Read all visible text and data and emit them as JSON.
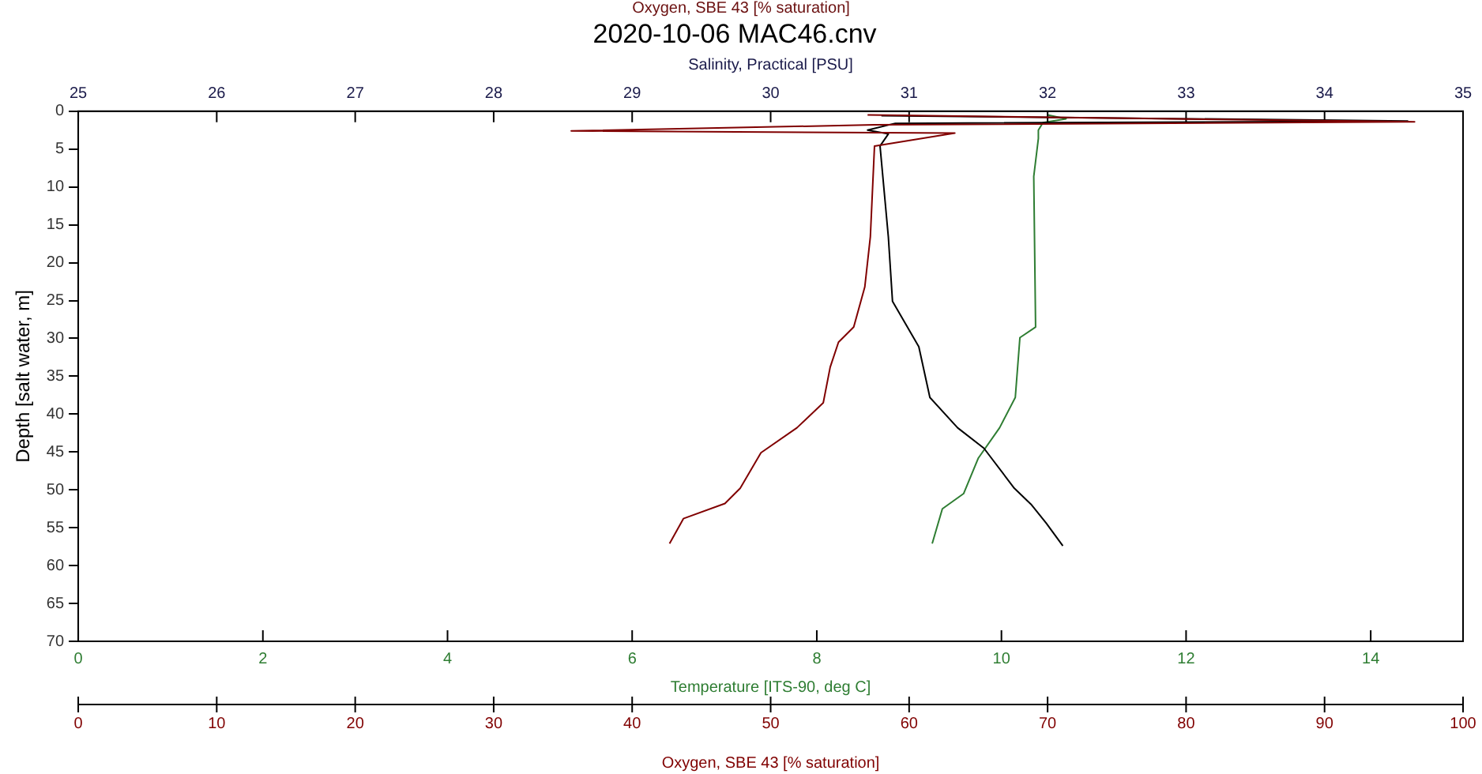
{
  "chart_data": [
    {
      "type": "line",
      "title": "2020-10-06 MAC46.cnv",
      "annotations": [
        "Oxygen, SBE 43 [% saturation]"
      ],
      "xlabel": "Temperature [ITS-90, deg C]",
      "xlim": [
        0,
        15
      ],
      "xticks": [
        0,
        2,
        4,
        6,
        8,
        10,
        12,
        14
      ],
      "x2label": "Salinity, Practical [PSU]",
      "x2lim": [
        25,
        35
      ],
      "x2ticks": [
        25,
        26,
        27,
        28,
        29,
        30,
        31,
        32,
        33,
        34,
        35
      ],
      "ylabel": "Depth [salt water, m]",
      "ylim": [
        70,
        0
      ],
      "yticks": [
        0,
        5,
        10,
        15,
        20,
        25,
        30,
        35,
        40,
        45,
        50,
        55,
        60,
        65,
        70
      ],
      "marker": "none",
      "line_style": "solid",
      "series": [
        {
          "axis": "x2",
          "color": "#000000",
          "x": [
            30.8,
            34.1,
            34.6,
            30.9,
            30.7,
            30.85,
            30.79,
            30.85,
            30.88,
            31.07,
            31.15,
            31.35,
            31.54,
            31.76,
            31.88,
            31.99,
            32.11
          ],
          "values": [
            0.6,
            1.2,
            1.3,
            1.6,
            2.5,
            3.0,
            4.6,
            16.6,
            25.1,
            31.1,
            37.8,
            41.8,
            44.5,
            49.8,
            51.9,
            54.4,
            57.4
          ]
        },
        {
          "color": "#2e7d32",
          "x": [
            10.5,
            10.7,
            10.45,
            10.4,
            10.4,
            10.35,
            10.37,
            10.2,
            10.15,
            9.98,
            9.75,
            9.59,
            9.36,
            9.25
          ],
          "values": [
            0.5,
            1.0,
            1.5,
            2.5,
            3.6,
            8.6,
            28.5,
            29.9,
            37.8,
            41.8,
            45.8,
            50.5,
            52.5,
            57.1
          ]
        }
      ]
    },
    {
      "type": "line",
      "xlabel": "Oxygen, SBE 43 [% saturation]",
      "xlim": [
        0,
        100
      ],
      "xticks": [
        0,
        10,
        20,
        30,
        40,
        50,
        60,
        70,
        80,
        90,
        100
      ],
      "ylim": [
        70,
        0
      ],
      "yticks": [
        0,
        5,
        10,
        15,
        20,
        25,
        30,
        35,
        40,
        45,
        50,
        55,
        60,
        65,
        70
      ],
      "tick_labels": "x",
      "marker": "none",
      "line_style": "solid",
      "series": [
        {
          "color": "#800000",
          "x": [
            57,
            96.5,
            57.5,
            35.6,
            63.3,
            57.5,
            57.2,
            56.8,
            56.0,
            54.9,
            54.3,
            53.8,
            51.9,
            49.3,
            47.8,
            46.7,
            43.7,
            42.7
          ],
          "values": [
            0.5,
            1.4,
            1.8,
            2.6,
            2.9,
            4.6,
            16.6,
            23.2,
            28.5,
            30.5,
            33.8,
            38.5,
            41.8,
            45.1,
            49.8,
            51.8,
            53.8,
            57.1
          ]
        }
      ]
    }
  ]
}
